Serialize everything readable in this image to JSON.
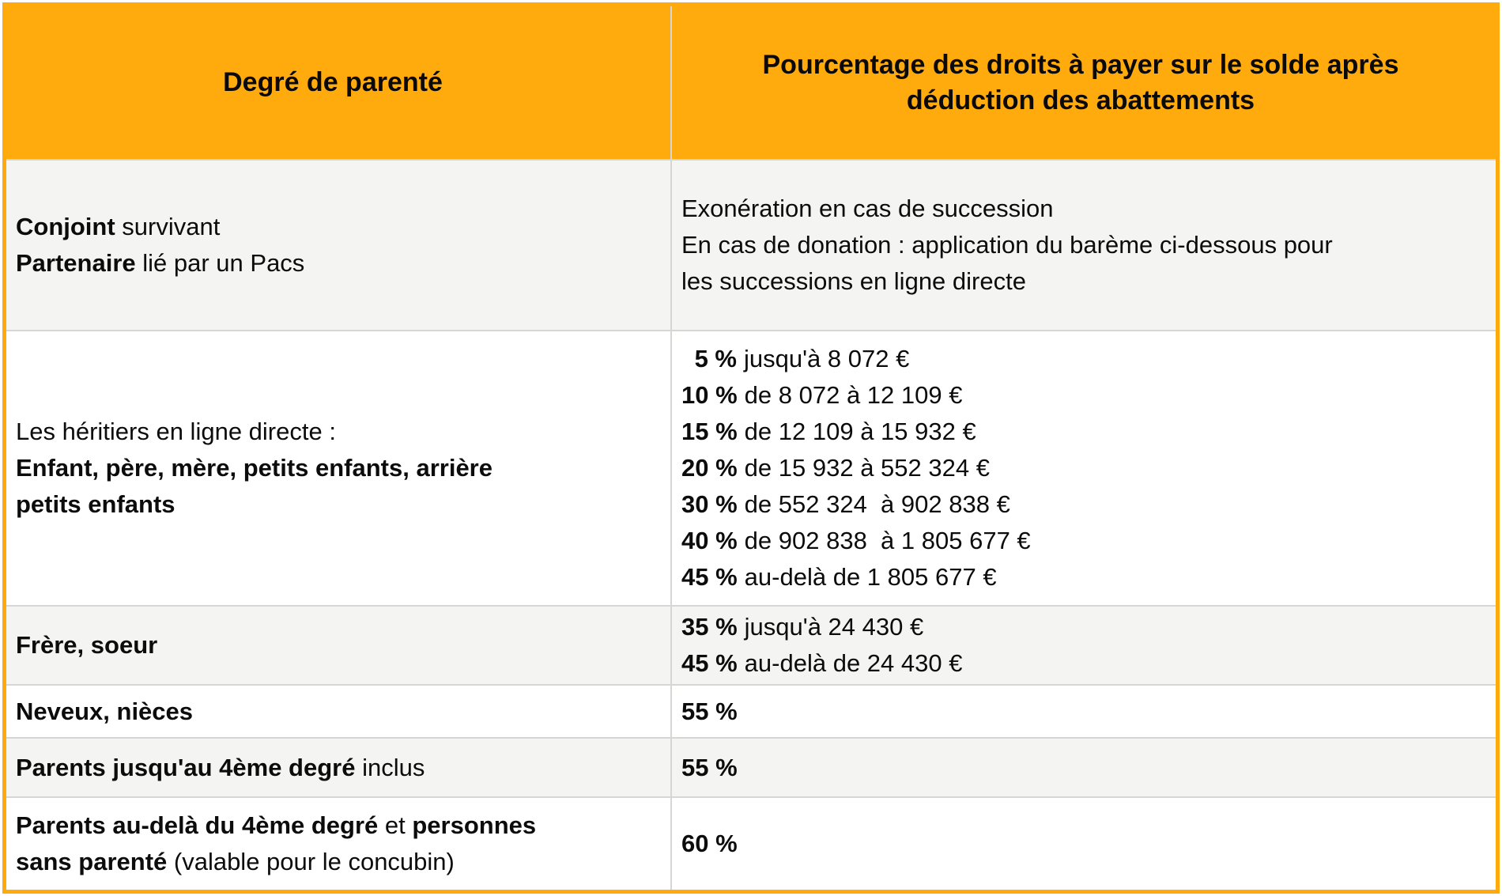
{
  "colors": {
    "accent_orange": "#ffab0d",
    "row_alt_background": "#f4f4f2",
    "grid_line": "#d6d6d4",
    "text": "#0c0c0c"
  },
  "header": {
    "col1": "Degré de parenté",
    "col2_line1": "Pourcentage des droits à payer sur le solde après",
    "col2_line2": "déduction des abattements"
  },
  "rows": {
    "conjoint": {
      "left": {
        "l1_b": "Conjoint",
        "l1_n": " survivant",
        "l2_b": "Partenaire",
        "l2_n": " lié par un Pacs"
      },
      "right": {
        "l1": "Exonération en cas de succession",
        "l2": "En cas de donation : application du barème ci-dessous pour",
        "l3": "les successions en ligne directe"
      }
    },
    "ligne_directe": {
      "left": {
        "l1": "Les héritiers en ligne directe :",
        "l2_b": "Enfant, père, mère, petits enfants, arrière",
        "l3_b": "petits enfants"
      },
      "brackets": [
        {
          "pct": "5 %",
          "cond": "jusqu'à 8 072 €"
        },
        {
          "pct": "10 %",
          "cond": "de 8 072 à 12 109 €"
        },
        {
          "pct": "15 %",
          "cond": "de 12 109 à 15 932 €"
        },
        {
          "pct": "20 %",
          "cond": "de 15 932 à 552 324 €"
        },
        {
          "pct": "30 %",
          "cond": "de 552 324  à 902 838 €"
        },
        {
          "pct": "40 %",
          "cond": "de 902 838  à 1 805 677 €"
        },
        {
          "pct": "45 %",
          "cond": "au-delà de 1 805 677 €"
        }
      ]
    },
    "frere_soeur": {
      "left_b": "Frère, soeur",
      "brackets": [
        {
          "pct": "35 %",
          "cond": "jusqu'à 24 430 €"
        },
        {
          "pct": "45 %",
          "cond": "au-delà de 24 430 €"
        }
      ]
    },
    "neveux_nieces": {
      "left_b": "Neveux, nièces",
      "rate": "55 %"
    },
    "parents_4eme": {
      "left_b": "Parents jusqu'au 4ème degré",
      "left_n": " inclus",
      "rate": "55 %"
    },
    "parents_au_dela": {
      "l1_b1": "Parents au-delà du 4ème degré",
      "l1_n": " et ",
      "l1_b2": "personnes",
      "l2_b": "sans parenté",
      "l2_n": " (valable pour le concubin)",
      "rate": "60 %"
    }
  }
}
